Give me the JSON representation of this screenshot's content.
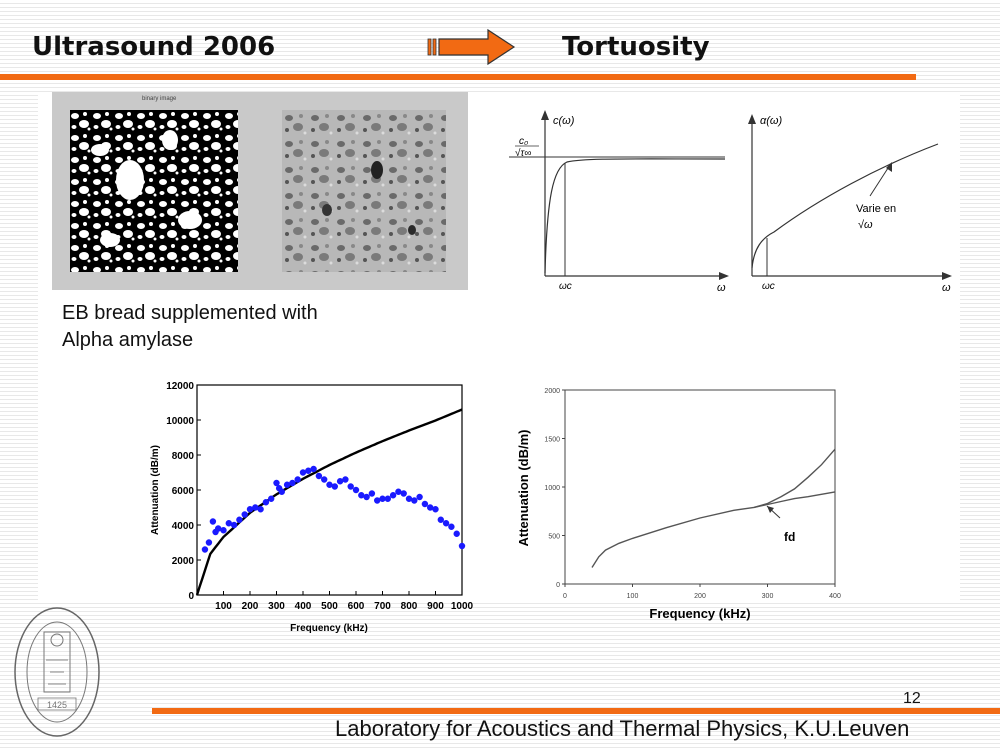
{
  "header": {
    "left_title": "Ultrasound 2006",
    "right_title": "Tortuosity"
  },
  "photo_panel": {
    "left_label": "binary image"
  },
  "caption": {
    "line1": "EB bread supplemented with",
    "line2": "Alpha amylase"
  },
  "curve_c": {
    "y_label": "c(ω)",
    "asymptote_num": "c₀",
    "asymptote_den": "√τ∞",
    "x_tick": "ωc",
    "x_label": "ω"
  },
  "curve_alpha": {
    "y_label": "α(ω)",
    "annotation_line1": "Varie en",
    "annotation_line2": "√ω",
    "x_tick": "ωc",
    "x_label": "ω"
  },
  "chart_data": [
    {
      "type": "scatter",
      "xlabel": "Frequency (kHz)",
      "ylabel": "Attenuation (dB/m)",
      "xlim": [
        0,
        1000
      ],
      "ylim": [
        0,
        12000
      ],
      "x_ticks": [
        100,
        200,
        300,
        400,
        500,
        600,
        700,
        800,
        900,
        1000
      ],
      "y_ticks": [
        0,
        2000,
        4000,
        6000,
        8000,
        10000,
        12000
      ],
      "series": [
        {
          "kind": "line",
          "color": "#000000",
          "x": [
            0,
            50,
            100,
            200,
            300,
            400,
            500,
            600,
            700,
            800,
            900,
            1000
          ],
          "y": [
            0,
            2350,
            3320,
            4700,
            5750,
            6640,
            7430,
            8140,
            8790,
            9400,
            9970,
            10600
          ]
        },
        {
          "kind": "scatter",
          "color": "#1a1aff",
          "x": [
            30,
            45,
            60,
            70,
            80,
            100,
            120,
            140,
            160,
            180,
            200,
            220,
            240,
            260,
            280,
            300,
            310,
            320,
            340,
            360,
            380,
            400,
            420,
            440,
            460,
            480,
            500,
            520,
            540,
            560,
            580,
            600,
            620,
            640,
            660,
            680,
            700,
            720,
            740,
            760,
            780,
            800,
            820,
            840,
            860,
            880,
            900,
            920,
            940,
            960,
            980,
            1000
          ],
          "y": [
            2600,
            3000,
            4200,
            3600,
            3800,
            3700,
            4100,
            4000,
            4300,
            4600,
            4900,
            5000,
            4900,
            5300,
            5500,
            6400,
            6100,
            5900,
            6300,
            6400,
            6600,
            7000,
            7100,
            7200,
            6800,
            6600,
            6300,
            6200,
            6500,
            6600,
            6200,
            6000,
            5700,
            5600,
            5800,
            5400,
            5500,
            5500,
            5700,
            5900,
            5800,
            5500,
            5400,
            5600,
            5200,
            5000,
            4900,
            4300,
            4100,
            3900,
            3500,
            2800
          ]
        }
      ]
    },
    {
      "type": "line",
      "xlabel": "Frequency (kHz)",
      "ylabel": "Attenuation (dB/m)",
      "xlim": [
        0,
        400
      ],
      "ylim": [
        0,
        2000
      ],
      "x_ticks": [
        0,
        100,
        200,
        300,
        400
      ],
      "y_ticks": [
        0,
        500,
        1000,
        1500,
        2000
      ],
      "annotation": "fd",
      "series": [
        {
          "kind": "line",
          "color": "#555555",
          "x": [
            40,
            50,
            60,
            80,
            100,
            150,
            200,
            250,
            280,
            300,
            320,
            340,
            360,
            380,
            400
          ],
          "y": [
            170,
            280,
            350,
            420,
            470,
            580,
            680,
            760,
            790,
            830,
            900,
            980,
            1100,
            1230,
            1390
          ]
        },
        {
          "kind": "line",
          "color": "#555555",
          "x": [
            280,
            300,
            320,
            340,
            360,
            380,
            400
          ],
          "y": [
            790,
            820,
            850,
            880,
            900,
            925,
            950
          ]
        }
      ]
    }
  ],
  "footer": {
    "slide_number": "12",
    "lab_name": "Laboratory for Acoustics and Thermal Physics, K.U.Leuven"
  },
  "colors": {
    "accent": "#f26a13",
    "scatter": "#1a1aff"
  }
}
